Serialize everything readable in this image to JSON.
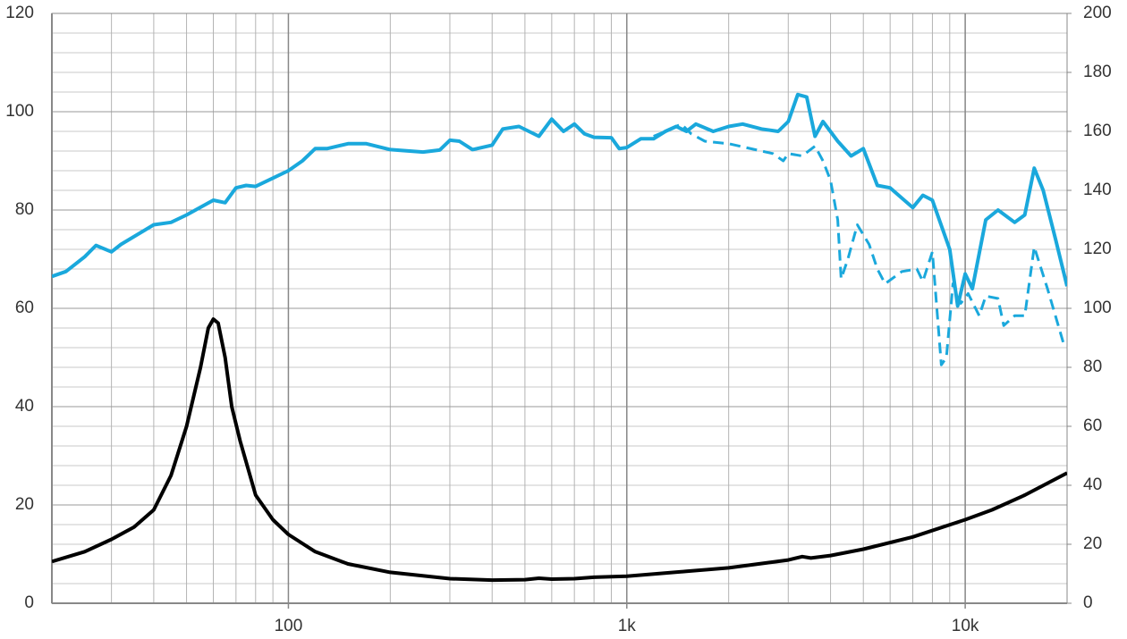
{
  "chart_data": {
    "type": "line",
    "xscale": "log",
    "grid": true,
    "xlim": [
      20,
      20000
    ],
    "xticks": [
      100,
      {
        "value": 1000,
        "label": "1k"
      },
      {
        "value": 10000,
        "label": "10k"
      }
    ],
    "ylim": [
      0,
      120
    ],
    "yticks": [
      0,
      20,
      40,
      60,
      80,
      100,
      120
    ],
    "y2lim": [
      0,
      200
    ],
    "y2ticks": [
      0,
      20,
      40,
      60,
      80,
      100,
      120,
      140,
      160,
      180,
      200
    ],
    "series": [
      {
        "color": "#1aa8dc",
        "style": "solid",
        "x": [
          20,
          22,
          25,
          27,
          30,
          32,
          40,
          45,
          50,
          60,
          65,
          70,
          75,
          80,
          90,
          100,
          110,
          120,
          130,
          150,
          170,
          200,
          250,
          280,
          300,
          320,
          350,
          400,
          430,
          480,
          550,
          600,
          650,
          700,
          750,
          800,
          900,
          950,
          1000,
          1100,
          1200,
          1300,
          1400,
          1500,
          1600,
          1800,
          2000,
          2200,
          2500,
          2800,
          3000,
          3200,
          3400,
          3600,
          3800,
          4200,
          4600,
          5000,
          5500,
          6000,
          7000,
          7500,
          8000,
          9000,
          9500,
          10000,
          10500,
          11500,
          12500,
          14000,
          15000,
          16000,
          17000,
          18500,
          20000
        ],
        "values": [
          66.5,
          67.5,
          70.5,
          72.8,
          71.5,
          73,
          77,
          77.5,
          79,
          82,
          81.5,
          84.5,
          85,
          84.8,
          86.5,
          88,
          90,
          92.5,
          92.5,
          93.5,
          93.5,
          92.3,
          91.8,
          92.2,
          94.2,
          94,
          92.3,
          93.2,
          96.5,
          97,
          95,
          98.5,
          96,
          97.5,
          95.5,
          94.8,
          94.7,
          92.5,
          92.7,
          94.5,
          94.5,
          96,
          97,
          96,
          97.5,
          96,
          97,
          97.5,
          96.5,
          96,
          98,
          103.5,
          103,
          95,
          98,
          94,
          91,
          92.5,
          85,
          84.5,
          80.5,
          83,
          82,
          72,
          60.5,
          67,
          64,
          78,
          80,
          77.5,
          79,
          88.5,
          84,
          74,
          64.5
        ]
      },
      {
        "color": "#1aa8dc",
        "style": "dashed",
        "x": [
          1200,
          1300,
          1450,
          1550,
          1700,
          2000,
          2500,
          2700,
          2900,
          3000,
          3300,
          3600,
          3800,
          4000,
          4200,
          4300,
          4500,
          4800,
          5200,
          5500,
          5800,
          6500,
          7200,
          7500,
          8000,
          8500,
          8800,
          9200,
          9700,
          10200,
          11000,
          11500,
          12500,
          13000,
          14000,
          15000,
          16000,
          17500,
          19500
        ],
        "values": [
          95,
          96,
          97.5,
          95.5,
          94,
          93.5,
          92,
          91.5,
          90,
          91.5,
          91,
          93,
          90,
          86,
          78,
          66,
          70,
          77,
          73,
          68,
          65,
          67.5,
          68,
          65.5,
          71.5,
          48.5,
          50,
          65,
          61,
          63,
          58.5,
          62.5,
          62,
          56.5,
          58.5,
          58.5,
          72.5,
          64,
          53
        ]
      },
      {
        "color": "#000000",
        "style": "solid",
        "x": [
          20,
          25,
          30,
          35,
          40,
          45,
          50,
          55,
          58,
          60,
          62,
          65,
          68,
          72,
          80,
          90,
          100,
          120,
          150,
          200,
          300,
          400,
          500,
          550,
          600,
          700,
          800,
          1000,
          1500,
          2000,
          3000,
          3300,
          3500,
          4000,
          5000,
          7000,
          10000,
          12000,
          15000,
          20000
        ],
        "values": [
          8.5,
          10.5,
          13,
          15.5,
          19,
          26,
          36,
          48,
          56,
          57.8,
          57,
          50,
          40,
          33,
          22,
          17,
          14,
          10.5,
          8,
          6.3,
          5,
          4.7,
          4.8,
          5.1,
          4.9,
          5,
          5.3,
          5.5,
          6.5,
          7.2,
          8.8,
          9.5,
          9.2,
          9.7,
          11,
          13.5,
          17,
          19,
          22,
          26.5
        ]
      }
    ]
  }
}
